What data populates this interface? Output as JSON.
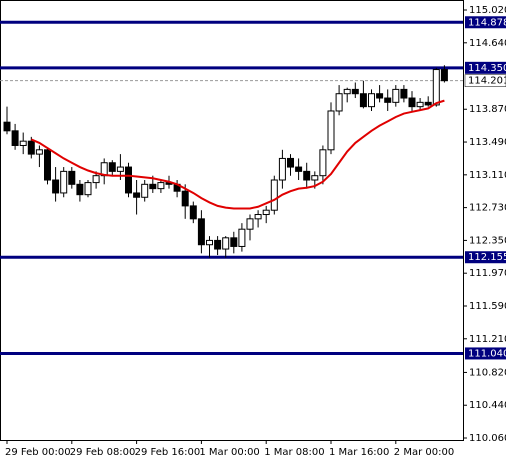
{
  "chart_data": {
    "type": "candlestick",
    "categories": [
      "29 Feb 00:00",
      null,
      null,
      null,
      null,
      null,
      null,
      null,
      "29 Feb 08:00",
      null,
      null,
      null,
      null,
      null,
      null,
      null,
      "29 Feb 16:00",
      null,
      null,
      null,
      null,
      null,
      null,
      null,
      "1 Mar 00:00",
      null,
      null,
      null,
      null,
      null,
      null,
      null,
      "1 Mar 08:00",
      null,
      null,
      null,
      null,
      null,
      null,
      null,
      "1 Mar 16:00",
      null,
      null,
      null,
      null,
      null,
      null,
      null,
      "2 Mar 00:00",
      null,
      null,
      null,
      null,
      null,
      null
    ],
    "open": [
      113.72,
      113.62,
      113.45,
      113.5,
      113.35,
      113.4,
      113.05,
      112.9,
      113.15,
      113.0,
      112.88,
      113.02,
      113.1,
      113.25,
      113.15,
      113.2,
      112.9,
      112.85,
      113.0,
      112.95,
      113.02,
      113.0,
      112.92,
      112.75,
      112.6,
      112.3,
      112.35,
      112.25,
      112.38,
      112.28,
      112.48,
      112.6,
      112.65,
      112.7,
      113.05,
      113.3,
      113.2,
      113.15,
      113.05,
      113.1,
      113.4,
      113.85,
      114.05,
      114.1,
      114.05,
      113.9,
      114.05,
      114.0,
      113.95,
      114.1,
      114.0,
      113.9,
      113.95,
      113.92,
      114.33
    ],
    "high": [
      113.9,
      113.7,
      113.6,
      113.55,
      113.45,
      113.42,
      113.2,
      113.2,
      113.2,
      113.05,
      113.05,
      113.15,
      113.3,
      113.28,
      113.35,
      113.25,
      113.05,
      113.05,
      113.1,
      113.05,
      113.1,
      113.05,
      113.0,
      112.8,
      112.7,
      112.4,
      112.4,
      112.4,
      112.45,
      112.55,
      112.65,
      112.7,
      112.75,
      113.1,
      113.4,
      113.35,
      113.3,
      113.25,
      113.15,
      113.45,
      113.95,
      114.15,
      114.12,
      114.18,
      114.2,
      114.1,
      114.15,
      114.1,
      114.15,
      114.15,
      114.08,
      114.0,
      114.02,
      114.35,
      114.38
    ],
    "low": [
      113.58,
      113.4,
      113.35,
      113.3,
      113.2,
      113.0,
      112.8,
      112.85,
      112.95,
      112.8,
      112.85,
      112.95,
      113.0,
      113.1,
      113.05,
      112.85,
      112.65,
      112.8,
      112.9,
      112.9,
      112.95,
      112.85,
      112.6,
      112.55,
      112.2,
      112.15,
      112.18,
      112.15,
      112.2,
      112.22,
      112.35,
      112.5,
      112.55,
      112.65,
      112.95,
      113.1,
      113.05,
      112.95,
      112.95,
      113.0,
      113.35,
      113.8,
      113.95,
      114.0,
      113.88,
      113.85,
      113.95,
      113.85,
      113.9,
      113.95,
      113.85,
      113.85,
      113.9,
      113.9,
      114.18
    ],
    "close": [
      113.62,
      113.45,
      113.5,
      113.35,
      113.4,
      113.05,
      112.9,
      113.15,
      113.0,
      112.88,
      113.02,
      113.1,
      113.25,
      113.15,
      113.2,
      112.9,
      112.85,
      113.0,
      112.95,
      113.02,
      113.0,
      112.92,
      112.75,
      112.6,
      112.3,
      112.35,
      112.25,
      112.38,
      112.28,
      112.48,
      112.6,
      112.65,
      112.7,
      113.05,
      113.3,
      113.2,
      113.15,
      113.05,
      113.1,
      113.4,
      113.85,
      114.05,
      114.1,
      114.05,
      113.9,
      114.05,
      114.0,
      113.95,
      114.1,
      114.0,
      113.9,
      113.95,
      113.92,
      114.33,
      114.201
    ],
    "moving_average": {
      "color": "#e00000",
      "values": [
        null,
        null,
        null,
        113.52,
        113.48,
        113.42,
        113.36,
        113.3,
        113.25,
        113.2,
        113.16,
        113.13,
        113.11,
        113.1,
        113.1,
        113.1,
        113.09,
        113.08,
        113.07,
        113.05,
        113.03,
        113.0,
        112.95,
        112.9,
        112.84,
        112.79,
        112.75,
        112.73,
        112.72,
        112.72,
        112.72,
        112.74,
        112.78,
        112.82,
        112.88,
        112.92,
        112.95,
        112.96,
        112.98,
        113.03,
        113.12,
        113.25,
        113.38,
        113.48,
        113.55,
        113.62,
        113.68,
        113.73,
        113.78,
        113.82,
        113.84,
        113.86,
        113.88,
        113.94,
        113.97
      ]
    },
    "levels": [
      114.878,
      {
        "value": 114.35,
        "label": "114.350"
      },
      112.155,
      {
        "value": 111.04,
        "label": "111.040"
      }
    ],
    "level_color": "#00007f",
    "current_price": 114.201,
    "ylim": [
      110.037,
      115.136
    ],
    "yticks": [
      {
        "value": 115.02,
        "label": "115.020"
      },
      {
        "value": 114.64,
        "label": "114.640"
      },
      {
        "value": 113.87,
        "label": "113.870"
      },
      {
        "value": 113.49,
        "label": "113.490"
      },
      {
        "value": 113.11,
        "label": "113.110"
      },
      {
        "value": 112.73,
        "label": "112.730"
      },
      {
        "value": 112.35,
        "label": "112.350"
      },
      {
        "value": 111.97,
        "label": "111.970"
      },
      {
        "value": 111.59,
        "label": "111.590"
      },
      {
        "value": 111.21,
        "label": "111.210"
      },
      {
        "value": 110.82,
        "label": "110.820"
      },
      {
        "value": 110.44,
        "label": "110.440"
      },
      {
        "value": 110.06,
        "label": "110.060"
      }
    ]
  }
}
